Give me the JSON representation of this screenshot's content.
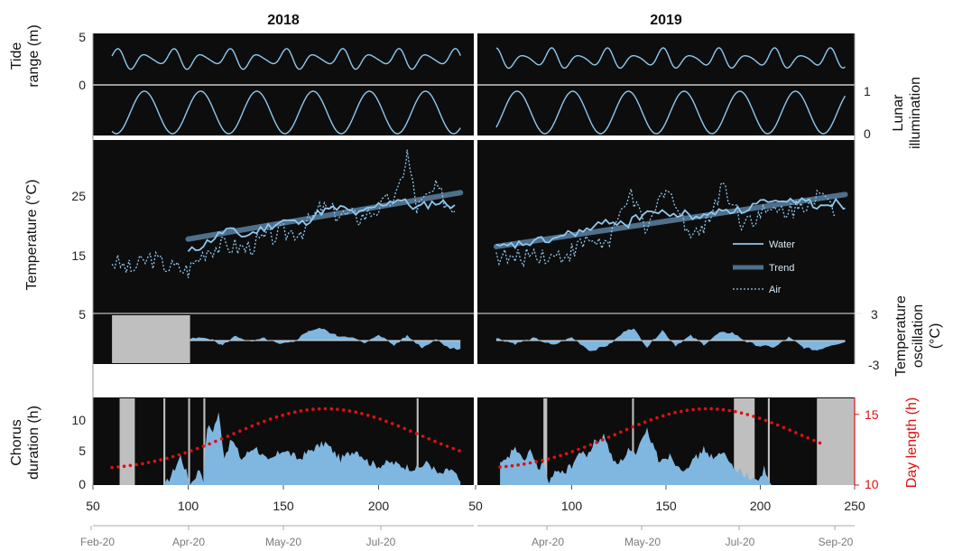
{
  "colors": {
    "panel_bg": "#0d0d0d",
    "line": "#8ec8f0",
    "trend": "#4f6f8a",
    "fill": "#7fb7e0",
    "gap": "#bfbfbf",
    "daylength": "#e01010",
    "frame": "#888888"
  },
  "chart_data": [
    {
      "type": "line",
      "panel": "tide",
      "titles": [
        "2018",
        "2019"
      ],
      "ylabel": "Tide range (m)",
      "ylabel_right": "Lunar illumination",
      "yticks": [
        "5",
        "0"
      ],
      "yticks_right": [
        "1",
        "0"
      ],
      "series": [
        {
          "name": "",
          "description": "tide range oscillating about 1.5-4 m, ~14.8 day period",
          "min": 1.4,
          "max": 4.1
        },
        {
          "name": "",
          "description": "lunar illumination 0-1, ~29.5 day period",
          "min": 0,
          "max": 1
        }
      ]
    },
    {
      "type": "line",
      "panel": "temperature",
      "ylabel": "Temperature (°C)",
      "ylim": [
        5,
        33
      ],
      "yticks": [
        "25",
        "15",
        "5"
      ],
      "legend": [
        "Water",
        "Trend",
        "Air"
      ],
      "legend_position": "right",
      "series_2018": [
        {
          "name": "Water",
          "x": [
            100,
            110,
            120,
            130,
            140,
            150,
            160,
            170,
            180,
            190,
            200,
            210,
            220,
            230,
            240
          ],
          "values": [
            14.8,
            16.5,
            18.5,
            17.5,
            18.8,
            20.0,
            19.5,
            21.5,
            22.0,
            21.0,
            22.5,
            23.5,
            22.0,
            23.0,
            22.5
          ]
        },
        {
          "name": "Trend",
          "x": [
            100,
            243
          ],
          "values": [
            17.0,
            24.5
          ]
        },
        {
          "name": "Air",
          "x": [
            60,
            70,
            80,
            90,
            100,
            110,
            120,
            130,
            140,
            150,
            160,
            170,
            180,
            190,
            200,
            210,
            215,
            220,
            230,
            240
          ],
          "values": [
            13.5,
            12.0,
            14.0,
            12.5,
            12.0,
            15.5,
            16.0,
            15.5,
            17.0,
            18.0,
            18.5,
            22.0,
            21.0,
            20.5,
            22.0,
            24.0,
            31.0,
            22.0,
            25.0,
            21.5
          ]
        }
      ],
      "series_2019": [
        {
          "name": "Water",
          "x": [
            60,
            70,
            80,
            90,
            100,
            110,
            120,
            130,
            140,
            150,
            160,
            170,
            180,
            190,
            200,
            210,
            220,
            230,
            240,
            245
          ],
          "values": [
            15.5,
            16.0,
            16.5,
            17.0,
            18.0,
            18.5,
            20.0,
            19.5,
            21.5,
            21.0,
            21.0,
            20.5,
            22.0,
            21.5,
            23.0,
            22.5,
            23.5,
            22.5,
            23.0,
            22.0
          ]
        },
        {
          "name": "Trend",
          "x": [
            60,
            245
          ],
          "values": [
            15.8,
            24.2
          ]
        },
        {
          "name": "Air",
          "x": [
            60,
            70,
            80,
            90,
            100,
            110,
            120,
            130,
            140,
            150,
            160,
            170,
            180,
            190,
            200,
            210,
            220,
            230,
            240
          ],
          "values": [
            14.5,
            13.5,
            15.0,
            14.0,
            15.0,
            17.0,
            16.0,
            24.5,
            18.0,
            26.0,
            19.0,
            18.5,
            26.0,
            20.0,
            21.0,
            21.5,
            22.0,
            24.5,
            21.0
          ]
        }
      ]
    },
    {
      "type": "area",
      "panel": "oscillation",
      "ylabel_right": "Temperature oscillation (°C)",
      "ylim": [
        -3,
        3
      ],
      "yticks_right": [
        "3",
        "-3"
      ],
      "gap_2018": [
        60,
        101
      ],
      "x_2018": [
        101,
        110,
        118,
        125,
        133,
        140,
        148,
        155,
        163,
        170,
        178,
        185,
        193,
        200,
        208,
        215,
        223,
        230,
        238,
        243
      ],
      "values_2018": [
        0.2,
        0.4,
        -0.6,
        0.6,
        -0.2,
        0.3,
        -0.5,
        -0.2,
        1.2,
        1.5,
        0.6,
        0.5,
        -0.4,
        0.8,
        -0.6,
        0.6,
        -0.9,
        0.2,
        -1.0,
        -1.0
      ],
      "x_2019": [
        60,
        70,
        80,
        90,
        100,
        110,
        120,
        130,
        133,
        140,
        148,
        155,
        163,
        170,
        178,
        185,
        193,
        200,
        208,
        215,
        223,
        230,
        238,
        245
      ],
      "values_2019": [
        0.3,
        -0.4,
        0.3,
        -0.6,
        0.4,
        -1.3,
        -0.5,
        1.5,
        1.4,
        -0.8,
        1.3,
        -0.6,
        0.6,
        -0.5,
        0.9,
        1.0,
        -0.2,
        -0.7,
        -0.8,
        0.4,
        -0.9,
        -1.2,
        -0.5,
        -0.2
      ]
    },
    {
      "type": "area",
      "panel": "chorus",
      "ylabel": "Chorus duration (h)",
      "ylabel_right": "Day length (h)",
      "ylim": [
        0,
        13.5
      ],
      "yticks": [
        "10",
        "5",
        "0"
      ],
      "ylim_right": [
        10,
        16.2
      ],
      "yticks_right": [
        "15",
        "10"
      ],
      "xlim": [
        50,
        250
      ],
      "xticks": [
        "50",
        "100",
        "150",
        "200",
        "50",
        "100",
        "150",
        "200",
        "250"
      ],
      "date_ticks_2018": [
        "Feb-20",
        "Apr-20",
        "May-20",
        "Jul-20"
      ],
      "date_ticks_2019": [
        "Apr-20",
        "May-20",
        "Jul-20",
        "Sep-20"
      ],
      "gaps_2018": [
        [
          64,
          72
        ],
        [
          87,
          88
        ],
        [
          100,
          101
        ],
        [
          108,
          109
        ],
        [
          220,
          221
        ]
      ],
      "gaps_2019": [
        [
          85,
          87
        ],
        [
          132,
          133
        ],
        [
          186,
          197
        ],
        [
          204,
          205
        ],
        [
          230,
          250
        ]
      ],
      "x_2018": [
        88,
        92,
        96,
        99,
        101,
        104,
        106,
        108,
        110,
        113,
        116,
        119,
        123,
        128,
        135,
        142,
        150,
        158,
        165,
        172,
        180,
        188,
        195,
        200,
        206,
        212,
        220,
        226,
        232,
        238,
        243
      ],
      "values_2018": [
        0,
        2.0,
        4.5,
        2.0,
        0,
        1.5,
        2.5,
        1.0,
        9.0,
        8.5,
        11.0,
        4.5,
        7.0,
        4.0,
        6.0,
        3.5,
        5.5,
        4.0,
        5.5,
        6.5,
        4.0,
        5.5,
        3.5,
        3.0,
        3.5,
        3.0,
        2.5,
        3.5,
        1.5,
        2.5,
        0.5
      ],
      "x_2019": [
        62,
        66,
        70,
        74,
        78,
        82,
        85,
        88,
        92,
        96,
        100,
        104,
        108,
        112,
        117,
        122,
        126,
        130,
        134,
        140,
        146,
        152,
        158,
        164,
        170,
        176,
        180,
        185,
        198,
        202,
        206
      ],
      "values_2019": [
        3.0,
        4.0,
        6.0,
        3.5,
        5.5,
        2.5,
        3.5,
        0,
        2.5,
        2.0,
        3.0,
        5.0,
        4.5,
        6.5,
        7.5,
        4.0,
        3.5,
        5.5,
        4.5,
        8.5,
        4.0,
        4.5,
        2.5,
        3.5,
        5.5,
        4.0,
        5.0,
        3.0,
        0.5,
        2.5,
        0
      ],
      "daylength_2018": {
        "x_start": 60,
        "x_end": 243,
        "peak_x": 172,
        "min": 11.1,
        "max": 15.4
      },
      "daylength_2019": {
        "x_start": 62,
        "x_end": 232,
        "peak_x": 172,
        "min": 11.1,
        "max": 15.4
      }
    }
  ]
}
